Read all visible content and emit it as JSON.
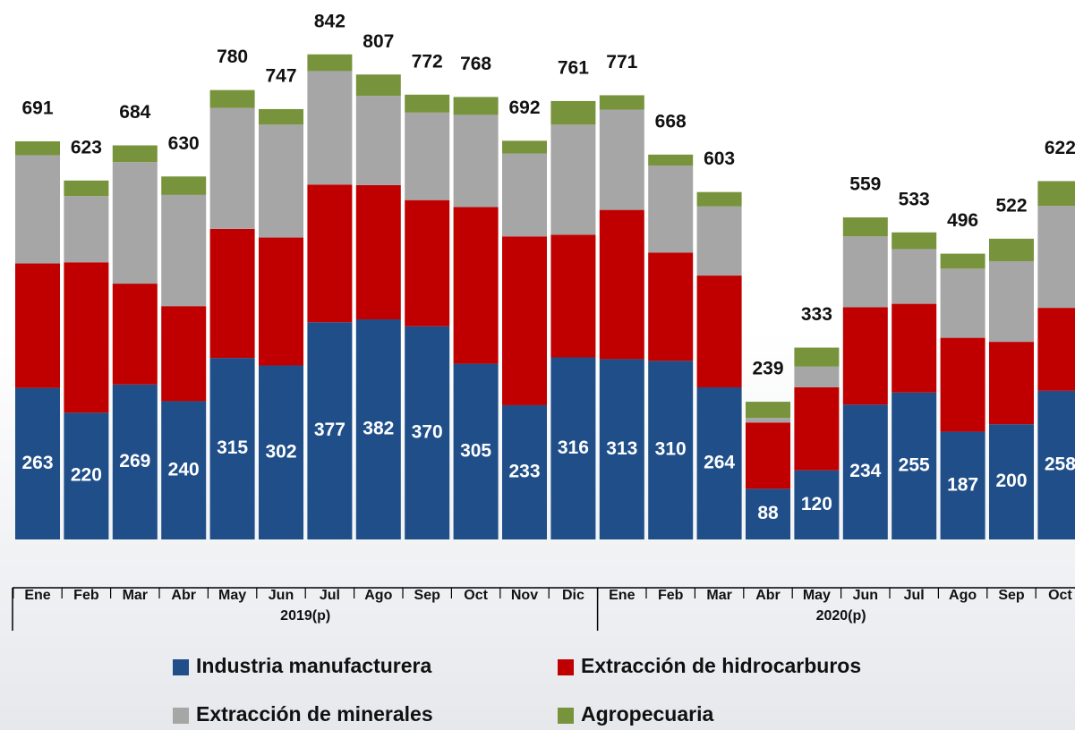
{
  "chart_data": {
    "type": "stacked_bar",
    "groups": [
      {
        "name": "2019(p)",
        "categories": [
          "Ene",
          "Feb",
          "Mar",
          "Abr",
          "May",
          "Jun",
          "Jul",
          "Ago",
          "Sep",
          "Oct",
          "Nov",
          "Dic"
        ]
      },
      {
        "name": "2020(p)",
        "categories": [
          "Ene",
          "Feb",
          "Mar",
          "Abr",
          "May",
          "Jun",
          "Jul",
          "Ago",
          "Sep",
          "Oct"
        ]
      }
    ],
    "series": [
      {
        "name": "Industria manufacturera",
        "color": "#1f4e89",
        "values": [
          263,
          220,
          269,
          240,
          315,
          302,
          377,
          382,
          370,
          305,
          233,
          316,
          313,
          310,
          264,
          88,
          120,
          234,
          255,
          187,
          200,
          258
        ]
      },
      {
        "name": "Extracción de hidrocarburos",
        "color": "#c00000",
        "values": [
          216,
          261,
          175,
          165,
          224,
          222,
          239,
          233,
          219,
          272,
          293,
          213,
          259,
          188,
          194,
          115,
          144,
          169,
          154,
          163,
          143,
          144
        ]
      },
      {
        "name": "Extracción de minerales",
        "color": "#a6a6a6",
        "values": [
          188,
          115,
          211,
          193,
          210,
          196,
          197,
          155,
          152,
          160,
          144,
          191,
          174,
          151,
          120,
          8,
          36,
          123,
          95,
          120,
          140,
          177
        ]
      },
      {
        "name": "Agropecuaria",
        "color": "#77933c",
        "values": [
          24,
          27,
          29,
          32,
          31,
          27,
          29,
          37,
          31,
          31,
          22,
          41,
          25,
          19,
          25,
          28,
          33,
          33,
          29,
          26,
          39,
          43
        ]
      }
    ],
    "totals": [
      691,
      623,
      684,
      630,
      780,
      747,
      842,
      807,
      772,
      768,
      692,
      761,
      771,
      668,
      603,
      239,
      333,
      559,
      533,
      496,
      522,
      622
    ],
    "labeled_series": 0
  }
}
